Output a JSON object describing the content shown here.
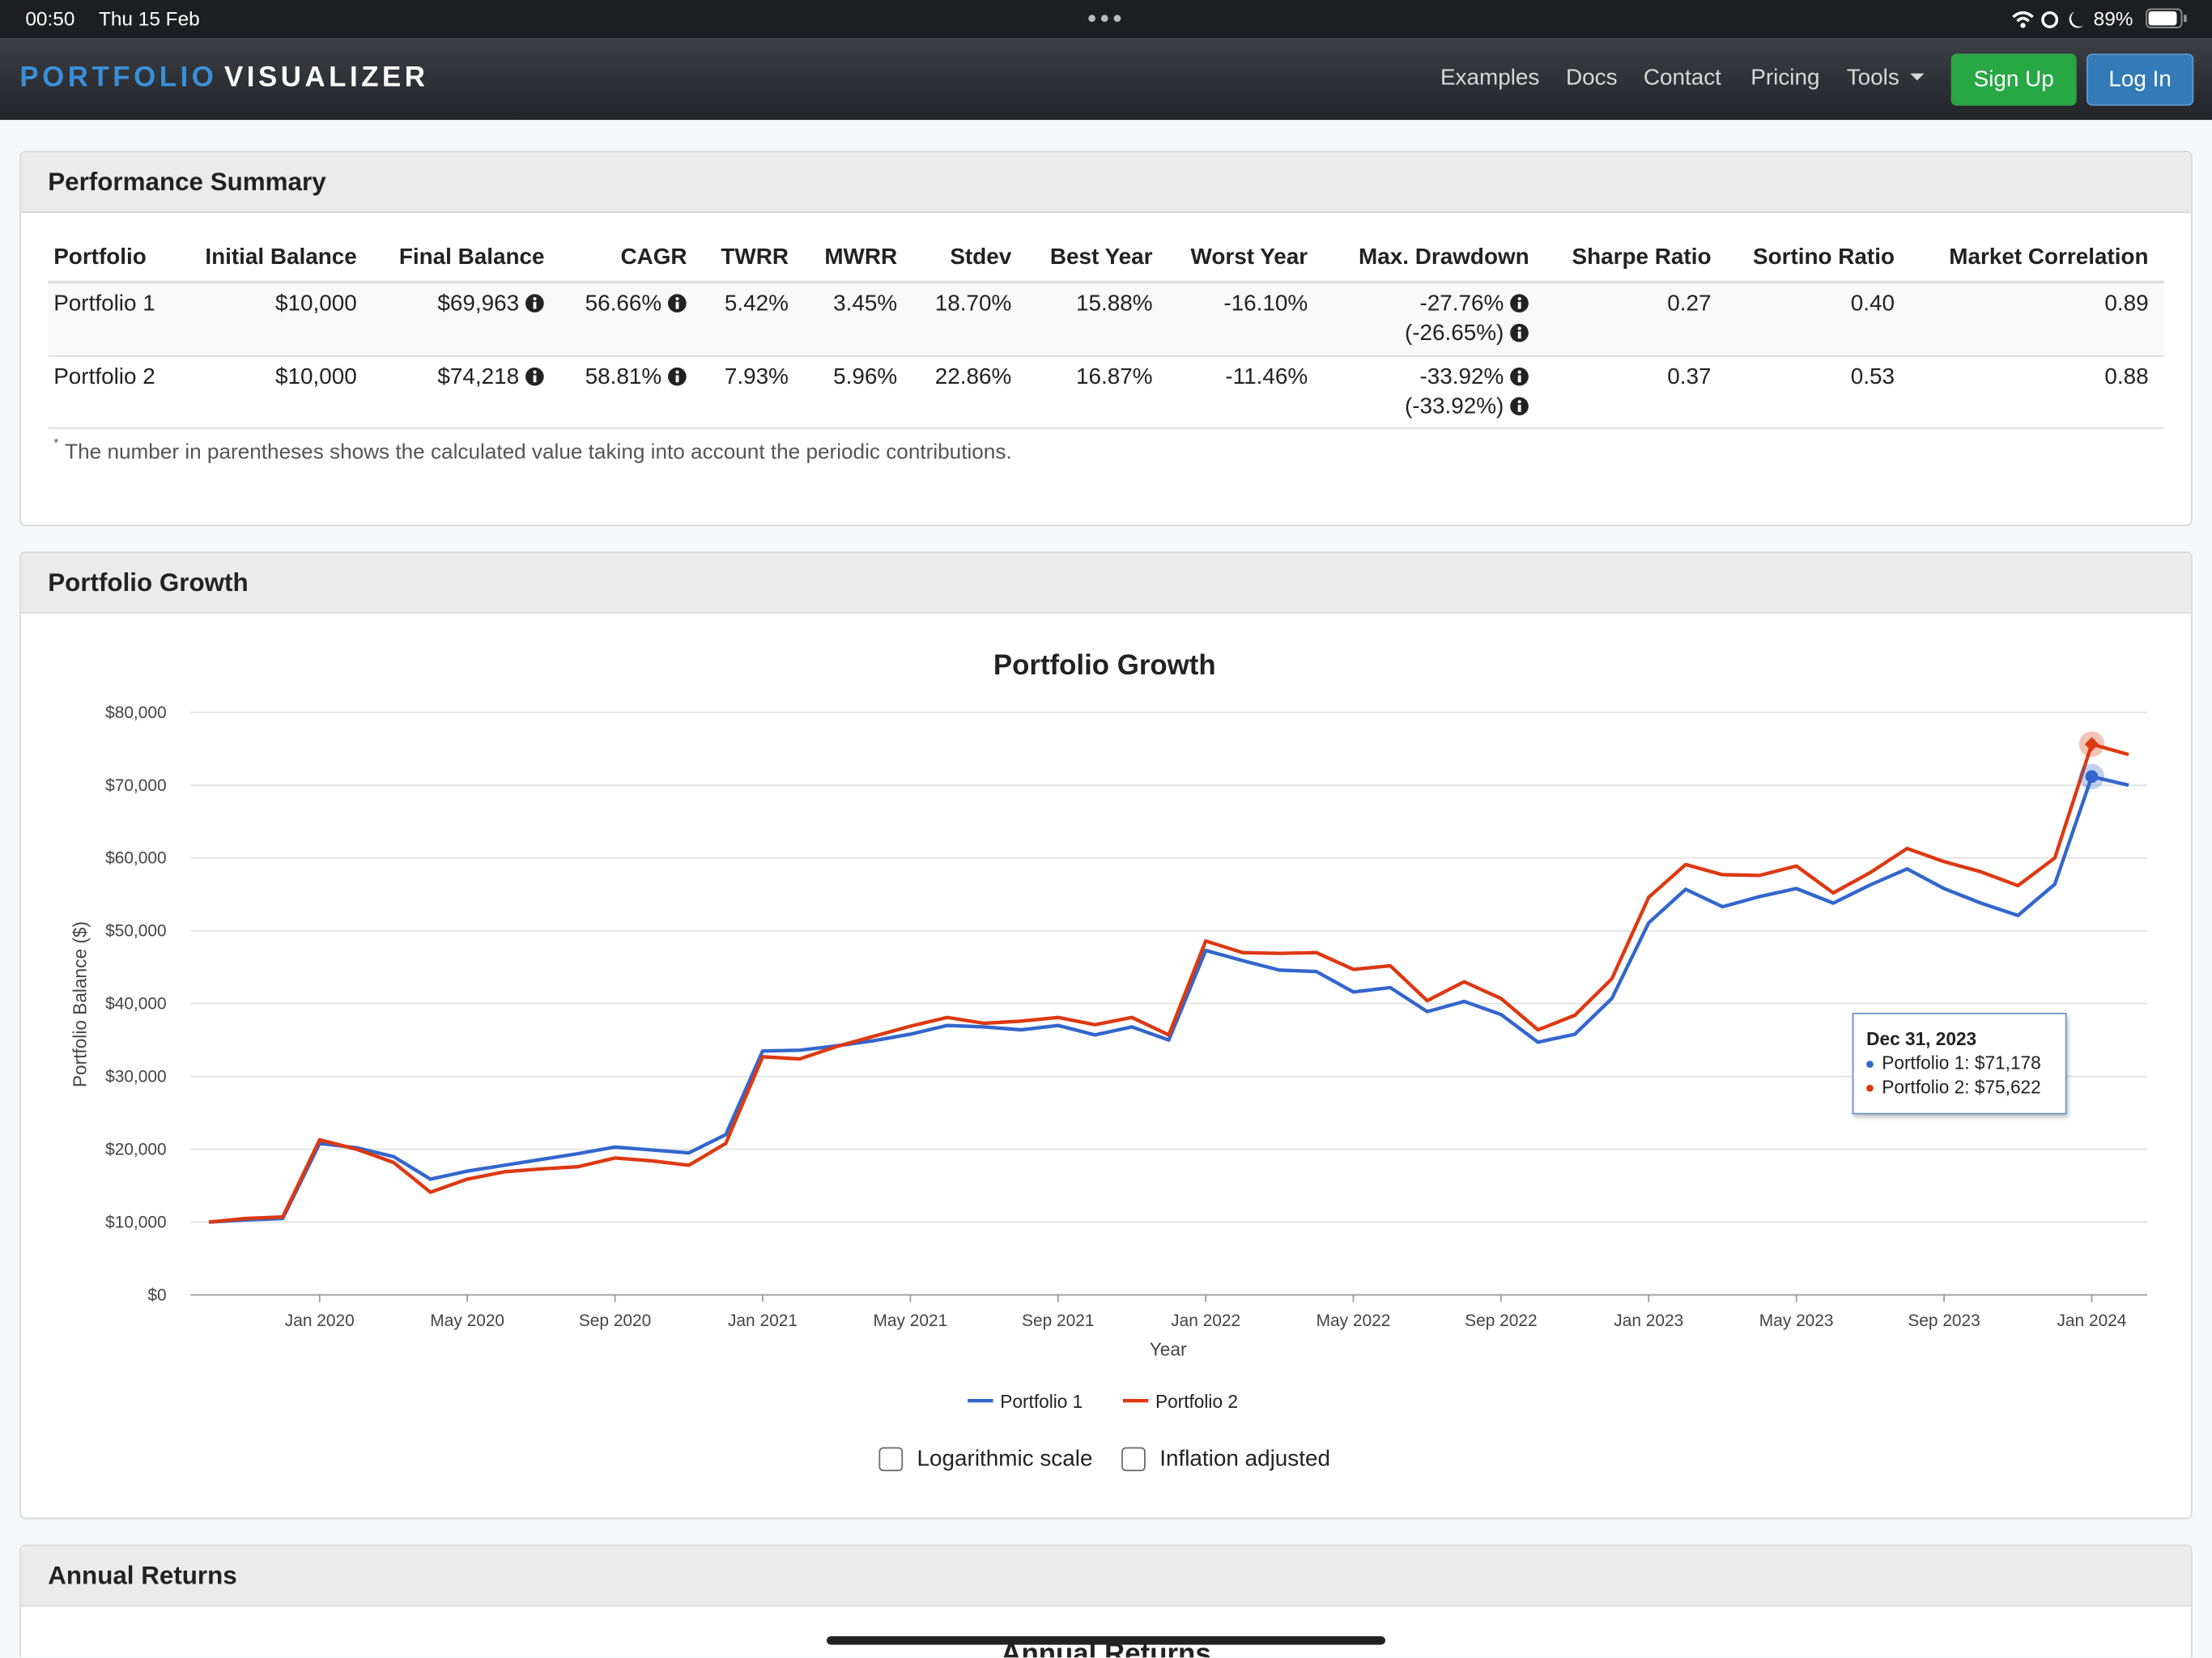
{
  "status_bar": {
    "time": "00:50",
    "date": "Thu 15 Feb",
    "battery": "89%"
  },
  "navbar": {
    "brand_first": "PORTFOLIO",
    "brand_second": "VISUALIZER",
    "links": [
      "Examples",
      "Docs",
      "Contact",
      "Pricing",
      "Tools"
    ],
    "sign_up": "Sign Up",
    "log_in": "Log In"
  },
  "performance_summary": {
    "title": "Performance Summary",
    "table": {
      "headers": [
        "Portfolio",
        "Initial Balance",
        "Final Balance",
        "CAGR",
        "TWRR",
        "MWRR",
        "Stdev",
        "Best Year",
        "Worst Year",
        "Max. Drawdown",
        "Sharpe Ratio",
        "Sortino Ratio",
        "Market Correlation"
      ],
      "rows": [
        [
          "Portfolio 1",
          "$10,000",
          "$69,963",
          "56.66%",
          "5.42%",
          "3.45%",
          "18.70%",
          "15.88%",
          "-16.10%",
          [
            "-27.76%",
            "(-26.65%)"
          ],
          "0.27",
          "0.40",
          "0.89"
        ],
        [
          "Portfolio 2",
          "$10,000",
          "$74,218",
          "58.81%",
          "7.93%",
          "5.96%",
          "22.86%",
          "16.87%",
          "-11.46%",
          [
            "-33.92%",
            "(-33.92%)"
          ],
          "0.37",
          "0.53",
          "0.88"
        ]
      ]
    },
    "footnote_marker": "*",
    "footnote": "The number in parentheses shows the calculated value taking into account the periodic contributions."
  },
  "portfolio_growth": {
    "title": "Portfolio Growth",
    "tooltip": {
      "title": "Dec 31, 2023",
      "lines": [
        "Portfolio 1: $71,178",
        "Portfolio 2: $75,622"
      ]
    },
    "options": [
      "Logarithmic scale",
      "Inflation adjusted"
    ]
  },
  "chart_data": {
    "type": "line",
    "title": "Portfolio Growth",
    "x_label": "Year",
    "y_label": "Portfolio Balance ($)",
    "x": [
      "2019-10",
      "2019-11",
      "2019-12",
      "2020-01",
      "2020-02",
      "2020-03",
      "2020-04",
      "2020-05",
      "2020-06",
      "2020-07",
      "2020-08",
      "2020-09",
      "2020-10",
      "2020-11",
      "2020-12",
      "2021-01",
      "2021-02",
      "2021-03",
      "2021-04",
      "2021-05",
      "2021-06",
      "2021-07",
      "2021-08",
      "2021-09",
      "2021-10",
      "2021-11",
      "2021-12",
      "2022-01",
      "2022-02",
      "2022-03",
      "2022-04",
      "2022-05",
      "2022-06",
      "2022-07",
      "2022-08",
      "2022-09",
      "2022-10",
      "2022-11",
      "2022-12",
      "2023-01",
      "2023-02",
      "2023-03",
      "2023-04",
      "2023-05",
      "2023-06",
      "2023-07",
      "2023-08",
      "2023-09",
      "2023-10",
      "2023-11",
      "2023-12",
      "2024-01",
      "2024-02"
    ],
    "series": [
      {
        "name": "Portfolio 1",
        "color": "#3366cc",
        "values": [
          10000,
          10300,
          10500,
          20800,
          20200,
          19000,
          15900,
          17000,
          17800,
          18600,
          19400,
          20300,
          19900,
          19500,
          22000,
          33500,
          33600,
          34200,
          34900,
          35800,
          37000,
          36800,
          36400,
          37000,
          35700,
          36800,
          35000,
          47300,
          45900,
          44600,
          44400,
          41600,
          42200,
          38900,
          40300,
          38500,
          34700,
          35800,
          40700,
          51100,
          55700,
          53300,
          54700,
          55800,
          53800,
          56300,
          58500,
          55800,
          53800,
          52100,
          56400,
          71178,
          70000
        ]
      },
      {
        "name": "Portfolio 2",
        "color": "#dc3912",
        "values": [
          10000,
          10500,
          10700,
          21300,
          20000,
          18200,
          14100,
          15900,
          16900,
          17300,
          17600,
          18800,
          18400,
          17800,
          20800,
          32700,
          32400,
          34100,
          35500,
          36900,
          38100,
          37300,
          37600,
          38100,
          37100,
          38100,
          35700,
          48600,
          47000,
          46900,
          47000,
          44700,
          45200,
          40400,
          43000,
          40700,
          36400,
          38400,
          43400,
          54600,
          59100,
          57700,
          57600,
          58900,
          55200,
          58000,
          61300,
          59500,
          58100,
          56200,
          60000,
          75622,
          74200
        ]
      }
    ],
    "ylim": [
      0,
      80000
    ],
    "yticks": [
      {
        "value": 0,
        "label": "$0"
      },
      {
        "value": 10000,
        "label": "$10,000"
      },
      {
        "value": 20000,
        "label": "$20,000"
      },
      {
        "value": 30000,
        "label": "$30,000"
      },
      {
        "value": 40000,
        "label": "$40,000"
      },
      {
        "value": 50000,
        "label": "$50,000"
      },
      {
        "value": 60000,
        "label": "$60,000"
      },
      {
        "value": 70000,
        "label": "$70,000"
      },
      {
        "value": 80000,
        "label": "$80,000"
      }
    ],
    "xticks": [
      {
        "value": "2020-01",
        "label": "Jan 2020"
      },
      {
        "value": "2020-05",
        "label": "May 2020"
      },
      {
        "value": "2020-09",
        "label": "Sep 2020"
      },
      {
        "value": "2021-01",
        "label": "Jan 2021"
      },
      {
        "value": "2021-05",
        "label": "May 2021"
      },
      {
        "value": "2021-09",
        "label": "Sep 2021"
      },
      {
        "value": "2022-01",
        "label": "Jan 2022"
      },
      {
        "value": "2022-05",
        "label": "May 2022"
      },
      {
        "value": "2022-09",
        "label": "Sep 2022"
      },
      {
        "value": "2023-01",
        "label": "Jan 2023"
      },
      {
        "value": "2023-05",
        "label": "May 2023"
      },
      {
        "value": "2023-09",
        "label": "Sep 2023"
      },
      {
        "value": "2024-01",
        "label": "Jan 2024"
      }
    ],
    "grid": true,
    "log_scale": false,
    "legend": "bottom"
  },
  "annual_returns": {
    "title": "Annual Returns",
    "chart_title": "Annual Returns"
  }
}
